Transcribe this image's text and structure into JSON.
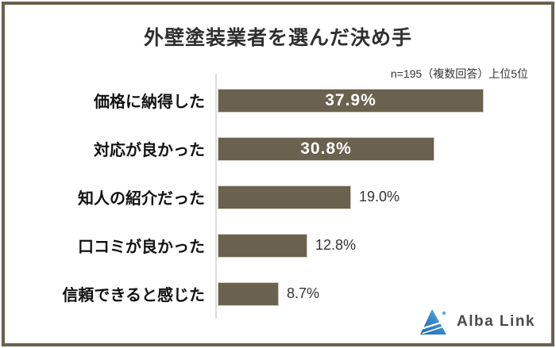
{
  "title": "外壁塗装業者を選んだ決め手",
  "note": "n=195（複数回答）上位5位",
  "chart_data": {
    "type": "bar",
    "orientation": "horizontal",
    "title": "外壁塗装業者を選んだ決め手",
    "subtitle": "n=195（複数回答）上位5位",
    "categories": [
      "価格に納得した",
      "対応が良かった",
      "知人の紹介だった",
      "口コミが良かった",
      "信頼できると感じた"
    ],
    "values": [
      37.9,
      30.8,
      19.0,
      12.8,
      8.7
    ],
    "value_labels": [
      "37.9%",
      "30.8%",
      "19.0%",
      "12.8%",
      "8.7%"
    ],
    "value_label_positions": [
      "inside",
      "inside",
      "outside",
      "outside",
      "outside"
    ],
    "unit": "%",
    "xlim": [
      0,
      40
    ],
    "grid": false,
    "legend": false
  },
  "logo": {
    "text": "Alba Link",
    "icon": "albalink-triangle-logo"
  },
  "colors": {
    "bar": "#6a614e",
    "bar_border": "#d2cdc2",
    "frame_border": "#6a614e",
    "axis_line": "#dcdcdc",
    "title_text": "#2f2f2f",
    "value_inside": "#ffffff",
    "value_outside": "#333333",
    "logo_text": "#4a4a4a",
    "logo_blue_dark": "#1d66ab",
    "logo_blue_light": "#56b0e3"
  }
}
